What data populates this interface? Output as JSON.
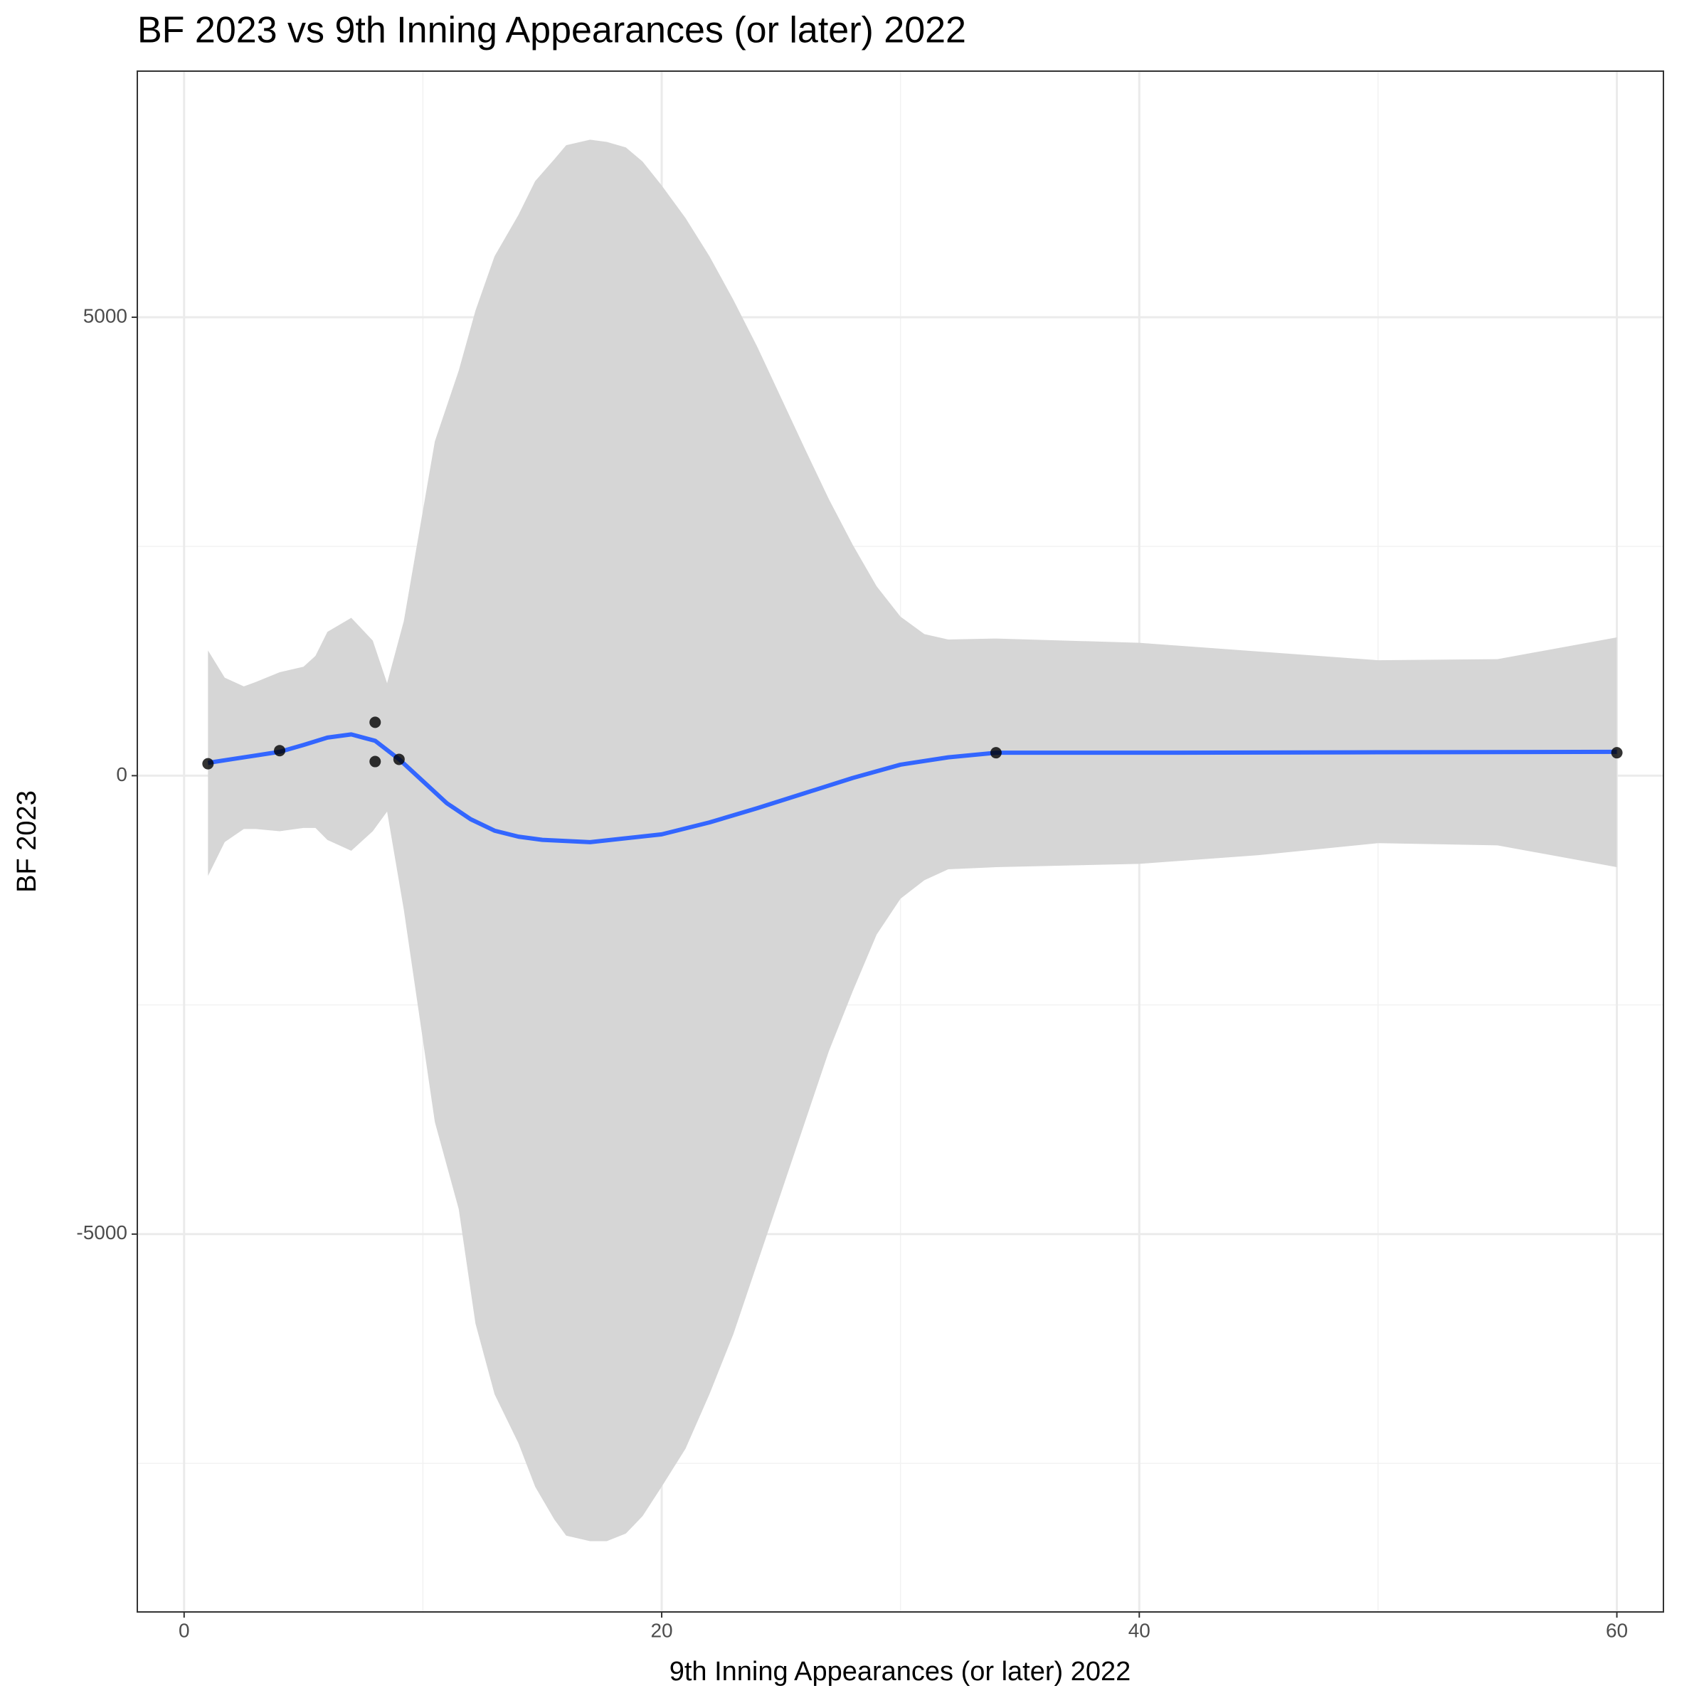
{
  "chart_data": {
    "type": "scatter",
    "title": "BF 2023 vs 9th Inning Appearances (or later) 2022",
    "x_label": "9th Inning Appearances (or later) 2022",
    "y_label": "BF 2023",
    "xlim": [
      -1.96,
      61.95
    ],
    "ylim": [
      -9121,
      7684
    ],
    "xticks": [
      0,
      20,
      40,
      60
    ],
    "yticks": [
      -5000,
      0,
      5000
    ],
    "xminor": [
      10,
      30,
      50
    ],
    "yminor": [
      -7500,
      -2500,
      2500
    ],
    "grid": true,
    "points": {
      "color": "#000000",
      "x": [
        1,
        4,
        8,
        8,
        9,
        34,
        60
      ],
      "y": [
        130,
        273,
        582,
        154,
        178,
        250,
        250
      ]
    },
    "smooth": {
      "color": "#3366FF",
      "x": [
        1,
        2,
        3,
        4,
        5,
        6,
        7,
        8,
        9,
        10,
        11,
        12,
        13,
        14,
        15,
        17,
        20,
        22,
        24,
        26,
        28,
        30,
        32,
        34,
        40,
        50,
        60
      ],
      "y": [
        140,
        180,
        220,
        260,
        335,
        415,
        450,
        380,
        180,
        -60,
        -300,
        -475,
        -600,
        -665,
        -700,
        -725,
        -640,
        -510,
        -355,
        -190,
        -25,
        120,
        200,
        250,
        250,
        255,
        260
      ]
    },
    "band": {
      "color": "#d6d6d6",
      "x": [
        1,
        1.7,
        2.5,
        3,
        4,
        5,
        5.5,
        6,
        7,
        7.9,
        8.5,
        9.2,
        10.5,
        11.5,
        12.2,
        13,
        14,
        14.7,
        15.5,
        16,
        17,
        17.7,
        18.5,
        19.2,
        20,
        21,
        22,
        23,
        24,
        25,
        26,
        27,
        28,
        29,
        30,
        31,
        32,
        34,
        40,
        45,
        50,
        55,
        60
      ],
      "upper": [
        1366,
        1069,
        974,
        1021,
        1128,
        1188,
        1306,
        1568,
        1722,
        1473,
        1009,
        1686,
        3646,
        4418,
        5071,
        5665,
        6116,
        6484,
        6722,
        6876,
        6936,
        6912,
        6852,
        6698,
        6437,
        6081,
        5665,
        5190,
        4679,
        4121,
        3563,
        3016,
        2518,
        2066,
        1734,
        1544,
        1485,
        1496,
        1449,
        1354,
        1259,
        1271,
        1508
      ],
      "lower": [
        -1093,
        -724,
        -582,
        -582,
        -606,
        -570,
        -570,
        -701,
        -819,
        -606,
        -392,
        -1461,
        -3777,
        -4727,
        -5974,
        -6746,
        -7280,
        -7755,
        -8111,
        -8289,
        -8349,
        -8349,
        -8266,
        -8076,
        -7755,
        -7339,
        -6746,
        -6092,
        -5320,
        -4549,
        -3777,
        -3005,
        -2351,
        -1734,
        -1342,
        -1140,
        -1021,
        -998,
        -962,
        -867,
        -736,
        -760,
        -998
      ]
    }
  }
}
